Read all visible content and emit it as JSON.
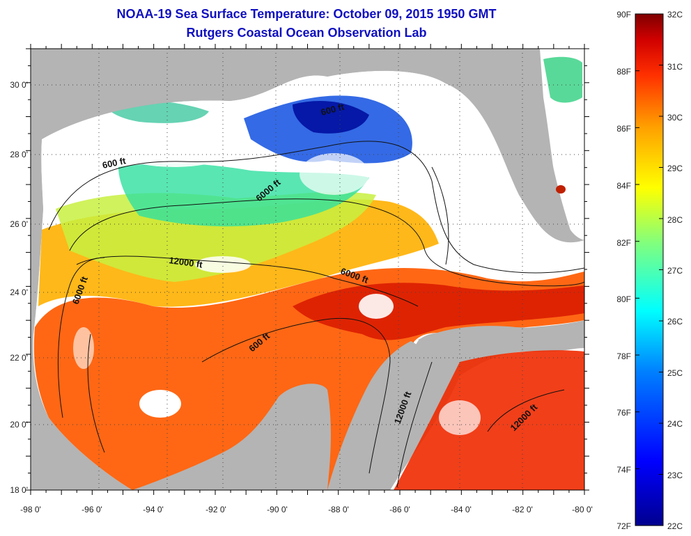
{
  "title": {
    "line1": "NOAA-19 Sea Surface Temperature:  October 09, 2015 1950 GMT",
    "line2": "Rutgers Coastal Ocean Observation Lab"
  },
  "axes": {
    "lon_labels": [
      "-98 0'",
      "-96 0'",
      "-94 0'",
      "-92 0'",
      "-90 0'",
      "-88 0'",
      "-86 0'",
      "-84 0'",
      "-82 0'",
      "-80 0'"
    ],
    "lat_labels": [
      "18 0'",
      "20 0'",
      "22 0'",
      "24 0'",
      "26 0'",
      "28 0'",
      "30 0'"
    ],
    "lon_range": [
      -98,
      -80
    ],
    "lat_range": [
      18,
      31
    ]
  },
  "contours": {
    "labels": [
      "600 ft",
      "600 ft",
      "6000 ft",
      "6000 ft",
      "12000 ft",
      "6000 ft",
      "600 ft",
      "12000 ft",
      "12000 ft"
    ]
  },
  "colorbar": {
    "fahrenheit": [
      "90F",
      "88F",
      "86F",
      "84F",
      "82F",
      "80F",
      "78F",
      "76F",
      "74F",
      "72F"
    ],
    "celsius": [
      "32C",
      "31C",
      "30C",
      "29C",
      "28C",
      "27C",
      "26C",
      "25C",
      "24C",
      "23C",
      "22C"
    ],
    "colors": [
      "#7f0000",
      "#ff0000",
      "#ff7f00",
      "#ffff00",
      "#7fff7f",
      "#00ffff",
      "#007fff",
      "#0000ff",
      "#00008f"
    ]
  },
  "colors": {
    "land": "#b4b4b4",
    "cloud": "#ffffff",
    "title": "#1010c0"
  }
}
